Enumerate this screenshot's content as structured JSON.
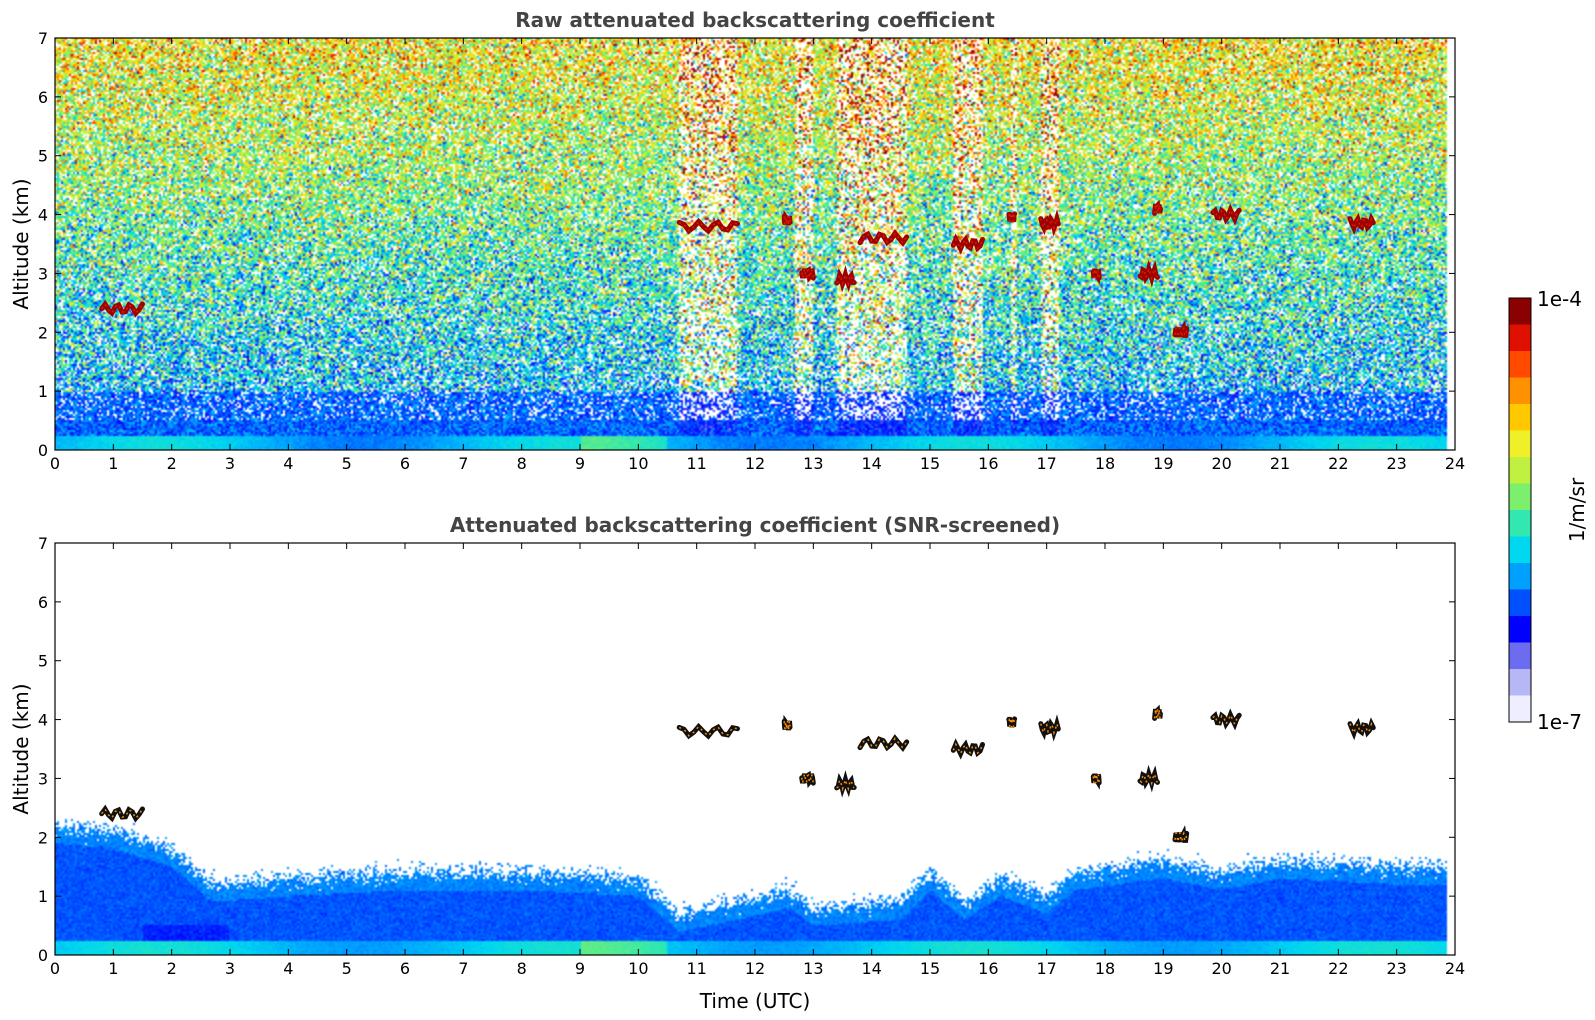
{
  "chart_data": [
    {
      "type": "heatmap",
      "title": "Raw attenuated backscattering coefficient",
      "xlabel": "",
      "ylabel": "Altitude (km)",
      "xlim": [
        0,
        24
      ],
      "ylim": [
        0,
        7
      ],
      "xticks": [
        "0",
        "1",
        "2",
        "3",
        "4",
        "5",
        "6",
        "7",
        "8",
        "9",
        "10",
        "11",
        "12",
        "13",
        "14",
        "15",
        "16",
        "17",
        "18",
        "19",
        "20",
        "21",
        "22",
        "23",
        "24"
      ],
      "yticks": [
        "0",
        "1",
        "2",
        "3",
        "4",
        "5",
        "6",
        "7"
      ],
      "screened": false,
      "high_noise_periods_utc": [
        [
          10.7,
          11.7
        ],
        [
          12.7,
          13.0
        ],
        [
          13.4,
          14.6
        ],
        [
          15.4,
          15.9
        ],
        [
          16.4,
          16.5
        ],
        [
          16.9,
          17.2
        ]
      ],
      "cloud_layers": [
        {
          "start": 0.8,
          "end": 1.5,
          "alt_km": 2.4
        },
        {
          "start": 10.7,
          "end": 11.7,
          "alt_km": 3.8
        },
        {
          "start": 12.5,
          "end": 12.6,
          "alt_km": 3.9
        },
        {
          "start": 12.8,
          "end": 13.0,
          "alt_km": 3.0
        },
        {
          "start": 13.4,
          "end": 13.7,
          "alt_km": 2.9
        },
        {
          "start": 13.8,
          "end": 14.6,
          "alt_km": 3.6
        },
        {
          "start": 15.4,
          "end": 15.9,
          "alt_km": 3.5
        },
        {
          "start": 16.35,
          "end": 16.45,
          "alt_km": 3.95
        },
        {
          "start": 16.9,
          "end": 17.2,
          "alt_km": 3.85
        },
        {
          "start": 17.8,
          "end": 17.9,
          "alt_km": 3.0
        },
        {
          "start": 18.6,
          "end": 18.9,
          "alt_km": 3.0
        },
        {
          "start": 18.85,
          "end": 18.95,
          "alt_km": 4.1
        },
        {
          "start": 19.2,
          "end": 19.4,
          "alt_km": 2.0
        },
        {
          "start": 19.85,
          "end": 20.3,
          "alt_km": 4.0
        },
        {
          "start": 22.2,
          "end": 22.6,
          "alt_km": 3.85
        }
      ]
    },
    {
      "type": "heatmap",
      "title": "Attenuated backscattering coefficient (SNR-screened)",
      "xlabel": "Time (UTC)",
      "ylabel": "Altitude (km)",
      "xlim": [
        0,
        24
      ],
      "ylim": [
        0,
        7
      ],
      "xticks": [
        "0",
        "1",
        "2",
        "3",
        "4",
        "5",
        "6",
        "7",
        "8",
        "9",
        "10",
        "11",
        "12",
        "13",
        "14",
        "15",
        "16",
        "17",
        "18",
        "19",
        "20",
        "21",
        "22",
        "23",
        "24"
      ],
      "yticks": [
        "0",
        "1",
        "2",
        "3",
        "4",
        "5",
        "6",
        "7"
      ],
      "screened": true,
      "boundary_layer_top_km": [
        [
          0,
          2.2
        ],
        [
          1,
          2.1
        ],
        [
          2,
          1.8
        ],
        [
          2.7,
          1.2
        ],
        [
          4,
          1.3
        ],
        [
          6,
          1.4
        ],
        [
          8,
          1.4
        ],
        [
          10,
          1.3
        ],
        [
          10.7,
          0.7
        ],
        [
          11.7,
          0.9
        ],
        [
          12.6,
          1.1
        ],
        [
          13.0,
          0.8
        ],
        [
          14.5,
          0.9
        ],
        [
          15.0,
          1.4
        ],
        [
          15.6,
          0.9
        ],
        [
          16.2,
          1.3
        ],
        [
          17.0,
          1.0
        ],
        [
          17.5,
          1.4
        ],
        [
          19.0,
          1.6
        ],
        [
          20.0,
          1.4
        ],
        [
          21.0,
          1.6
        ],
        [
          23.0,
          1.5
        ],
        [
          24,
          1.5
        ]
      ],
      "cloud_layers": [
        {
          "start": 0.8,
          "end": 1.5,
          "alt_km": 2.4
        },
        {
          "start": 10.7,
          "end": 11.7,
          "alt_km": 3.8
        },
        {
          "start": 12.5,
          "end": 12.6,
          "alt_km": 3.9
        },
        {
          "start": 12.8,
          "end": 13.0,
          "alt_km": 3.0
        },
        {
          "start": 13.4,
          "end": 13.7,
          "alt_km": 2.9
        },
        {
          "start": 13.8,
          "end": 14.6,
          "alt_km": 3.6
        },
        {
          "start": 15.4,
          "end": 15.9,
          "alt_km": 3.5
        },
        {
          "start": 16.35,
          "end": 16.45,
          "alt_km": 3.95
        },
        {
          "start": 16.9,
          "end": 17.2,
          "alt_km": 3.85
        },
        {
          "start": 17.8,
          "end": 17.9,
          "alt_km": 3.0
        },
        {
          "start": 18.6,
          "end": 18.9,
          "alt_km": 3.0
        },
        {
          "start": 18.85,
          "end": 18.95,
          "alt_km": 4.1
        },
        {
          "start": 19.2,
          "end": 19.4,
          "alt_km": 2.0
        },
        {
          "start": 19.85,
          "end": 20.3,
          "alt_km": 4.0
        },
        {
          "start": 22.2,
          "end": 22.6,
          "alt_km": 3.85
        }
      ]
    }
  ],
  "colorbar": {
    "label": "1/m/sr",
    "max_label": "1e-4",
    "min_label": "1e-7",
    "scale": "log",
    "range": [
      1e-07,
      0.0001
    ],
    "colors": [
      "#eeeeff",
      "#b7b7f5",
      "#6c6cf0",
      "#0000ff",
      "#0050ff",
      "#00a0ff",
      "#00d8f0",
      "#30e8b0",
      "#7cf06c",
      "#c0f040",
      "#f0f028",
      "#ffc800",
      "#ff9000",
      "#ff4a00",
      "#e01000",
      "#8b0000"
    ]
  }
}
